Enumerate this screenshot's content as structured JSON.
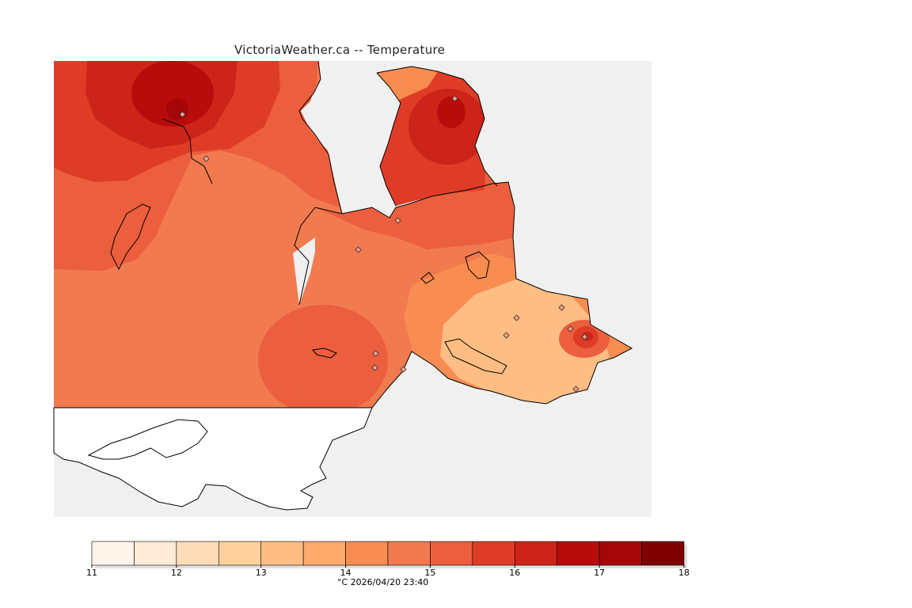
{
  "title": "VictoriaWeather.ca -- Temperature",
  "legend": {
    "unit_label": "°C",
    "timestamp": "2026/04/20 23:40",
    "ticks": [
      "11",
      "12",
      "13",
      "14",
      "15",
      "16",
      "17",
      "18"
    ],
    "colors": [
      "#fff5eb",
      "#feebd5",
      "#fddcb8",
      "#fdd09c",
      "#fdbd83",
      "#fdaa6c",
      "#f88c51",
      "#f27a4f",
      "#eb5e3e",
      "#df3c27",
      "#cc2418",
      "#b80c0c",
      "#a50608",
      "#7e0000"
    ]
  },
  "map": {
    "sea_color": "#f0f0f0",
    "land_color": "#ffffff",
    "coastline_color": "#000000",
    "station_count": 14
  }
}
